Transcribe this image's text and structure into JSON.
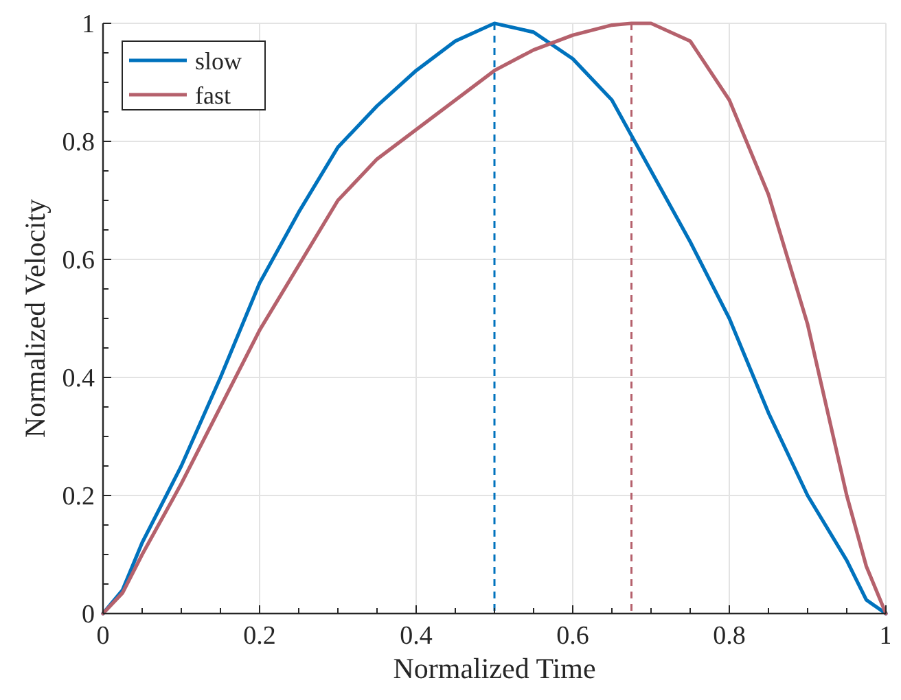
{
  "chart_data": {
    "type": "line",
    "xlabel": "Normalized Time",
    "ylabel": "Normalized Velocity",
    "xlim": [
      0,
      1
    ],
    "ylim": [
      0,
      1
    ],
    "xticks": [
      0,
      {
        "value": 0.05,
        "label": null
      },
      {
        "value": 0.1,
        "label": null
      },
      {
        "value": 0.15,
        "label": null
      },
      0.2,
      {
        "value": 0.25,
        "label": null
      },
      {
        "value": 0.3,
        "label": null
      },
      {
        "value": 0.35,
        "label": null
      },
      0.4,
      {
        "value": 0.45,
        "label": null
      },
      {
        "value": 0.5,
        "label": null
      },
      {
        "value": 0.55,
        "label": null
      },
      0.6,
      {
        "value": 0.65,
        "label": null
      },
      {
        "value": 0.7,
        "label": null
      },
      {
        "value": 0.75,
        "label": null
      },
      0.8,
      {
        "value": 0.85,
        "label": null
      },
      {
        "value": 0.9,
        "label": null
      },
      {
        "value": 0.95,
        "label": null
      },
      1
    ],
    "yticks": [
      0,
      {
        "value": 0.05,
        "label": null
      },
      {
        "value": 0.1,
        "label": null
      },
      {
        "value": 0.15,
        "label": null
      },
      0.2,
      {
        "value": 0.25,
        "label": null
      },
      {
        "value": 0.3,
        "label": null
      },
      {
        "value": 0.35,
        "label": null
      },
      0.4,
      {
        "value": 0.45,
        "label": null
      },
      {
        "value": 0.5,
        "label": null
      },
      {
        "value": 0.55,
        "label": null
      },
      0.6,
      {
        "value": 0.65,
        "label": null
      },
      {
        "value": 0.7,
        "label": null
      },
      {
        "value": 0.75,
        "label": null
      },
      0.8,
      {
        "value": 0.85,
        "label": null
      },
      {
        "value": 0.9,
        "label": null
      },
      {
        "value": 0.95,
        "label": null
      },
      1
    ],
    "x": [
      0,
      0.025,
      0.05,
      0.1,
      0.15,
      0.2,
      0.25,
      0.3,
      0.35,
      0.4,
      0.45,
      0.5,
      0.55,
      0.6,
      0.65,
      0.675,
      0.7,
      0.75,
      0.8,
      0.85,
      0.9,
      0.95,
      0.975,
      1
    ],
    "series": [
      {
        "name": "slow",
        "color": "#0072bd",
        "values": [
          0,
          0.04,
          0.12,
          0.25,
          0.4,
          0.56,
          0.68,
          0.79,
          0.86,
          0.92,
          0.97,
          1,
          0.985,
          0.94,
          0.87,
          0.81,
          0.75,
          0.63,
          0.5,
          0.34,
          0.2,
          0.09,
          0.023,
          0
        ]
      },
      {
        "name": "fast",
        "color": "#b5616c",
        "values": [
          0,
          0.035,
          0.1,
          0.22,
          0.35,
          0.48,
          0.59,
          0.7,
          0.77,
          0.82,
          0.87,
          0.92,
          0.955,
          0.98,
          0.997,
          1,
          1,
          0.97,
          0.87,
          0.71,
          0.49,
          0.2,
          0.08,
          0
        ]
      }
    ],
    "ref_lines": [
      {
        "axis": "x",
        "value": 0.5,
        "color": "#0072bd",
        "line_style": "dashed"
      },
      {
        "axis": "x",
        "value": 0.675,
        "color": "#b5616c",
        "line_style": "dashed"
      }
    ],
    "grid": true,
    "legend": "top left",
    "marker": "none",
    "line_style": "solid"
  }
}
